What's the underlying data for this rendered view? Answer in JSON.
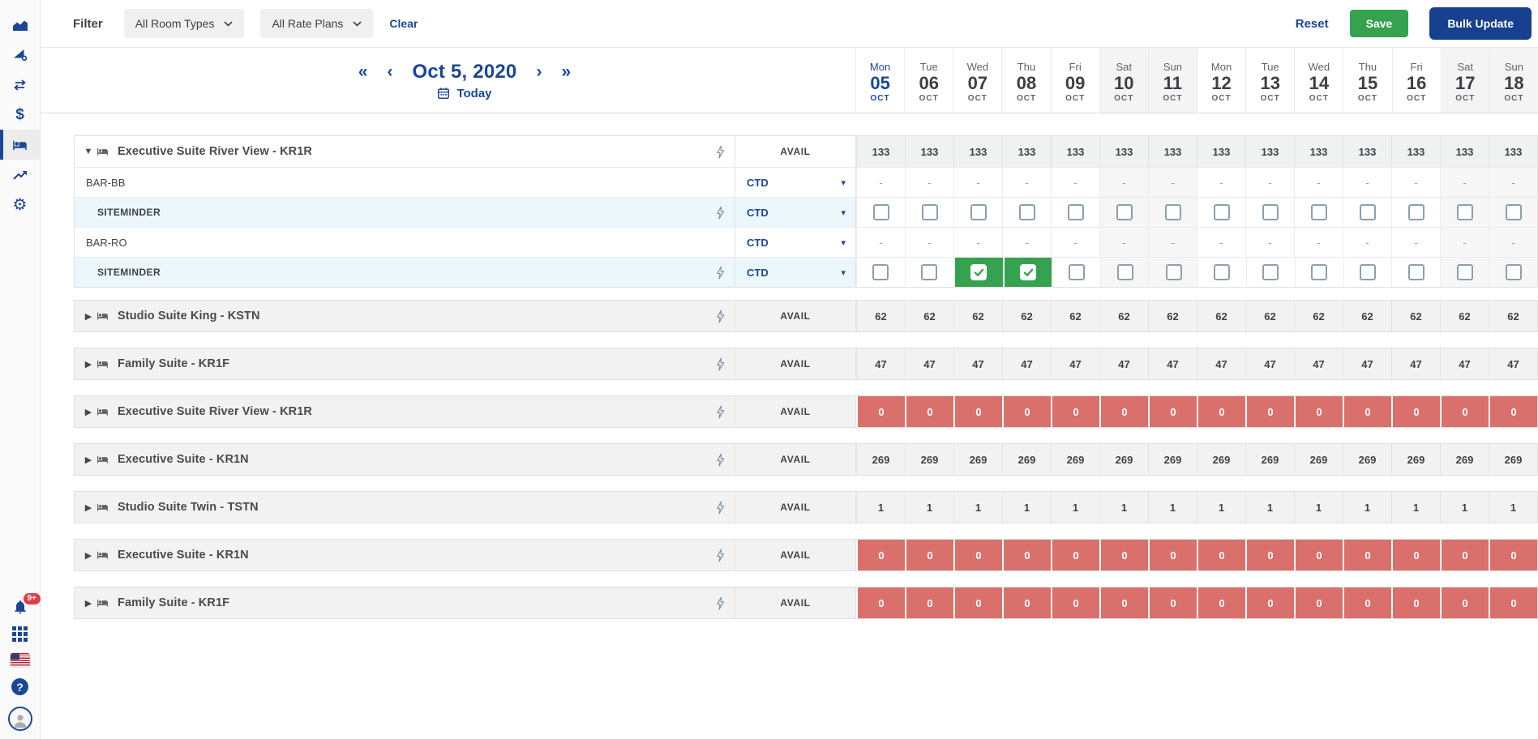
{
  "colors": {
    "navy": "#1b4796",
    "button_navy": "#17408e",
    "green": "#35a24f",
    "soldout_red": "#d9706b",
    "channel_row_bg": "#ecf7fb",
    "badge_red": "#e13b4e"
  },
  "sidebar": {
    "top_icons": [
      "area-chart",
      "ramp-gear",
      "swap-arrows",
      "dollar",
      "hotel-bed",
      "trend-up",
      "settings-gear"
    ],
    "active_icon": "hotel-bed",
    "notifications_badge": "9+",
    "bottom_icons": [
      "notifications-bell",
      "apps-grid",
      "us-flag",
      "help",
      "user-avatar"
    ]
  },
  "filter_bar": {
    "label": "Filter",
    "room_types_value": "All Room Types",
    "rate_plans_value": "All Rate Plans",
    "clear": "Clear",
    "reset": "Reset",
    "save": "Save",
    "bulk_update": "Bulk Update"
  },
  "calendar": {
    "title": "Oct 5, 2020",
    "today_label": "Today",
    "nav": {
      "prev_page": "«",
      "prev": "‹",
      "next": "›",
      "next_page": "»"
    },
    "days": [
      {
        "dow": "Mon",
        "date": "05",
        "month": "OCT",
        "today": true,
        "weekend": false
      },
      {
        "dow": "Tue",
        "date": "06",
        "month": "OCT",
        "today": false,
        "weekend": false
      },
      {
        "dow": "Wed",
        "date": "07",
        "month": "OCT",
        "today": false,
        "weekend": false
      },
      {
        "dow": "Thu",
        "date": "08",
        "month": "OCT",
        "today": false,
        "weekend": false
      },
      {
        "dow": "Fri",
        "date": "09",
        "month": "OCT",
        "today": false,
        "weekend": false
      },
      {
        "dow": "Sat",
        "date": "10",
        "month": "OCT",
        "today": false,
        "weekend": true
      },
      {
        "dow": "Sun",
        "date": "11",
        "month": "OCT",
        "today": false,
        "weekend": true
      },
      {
        "dow": "Mon",
        "date": "12",
        "month": "OCT",
        "today": false,
        "weekend": false
      },
      {
        "dow": "Tue",
        "date": "13",
        "month": "OCT",
        "today": false,
        "weekend": false
      },
      {
        "dow": "Wed",
        "date": "14",
        "month": "OCT",
        "today": false,
        "weekend": false
      },
      {
        "dow": "Thu",
        "date": "15",
        "month": "OCT",
        "today": false,
        "weekend": false
      },
      {
        "dow": "Fri",
        "date": "16",
        "month": "OCT",
        "today": false,
        "weekend": false
      },
      {
        "dow": "Sat",
        "date": "17",
        "month": "OCT",
        "today": false,
        "weekend": true
      },
      {
        "dow": "Sun",
        "date": "18",
        "month": "OCT",
        "today": false,
        "weekend": true
      }
    ]
  },
  "grid": {
    "avail_label": "AVAIL",
    "dash_placeholder": "-",
    "groups": [
      {
        "name": "Executive Suite River View - KR1R",
        "expanded": true,
        "avail": "133",
        "status": "normal",
        "children": [
          {
            "kind": "rate",
            "label": "BAR-BB",
            "restriction": "CTD",
            "cell_type": "dash"
          },
          {
            "kind": "channel",
            "label": "SITEMINDER",
            "restriction": "CTD",
            "cell_type": "checkbox",
            "checked_days": []
          },
          {
            "kind": "rate",
            "label": "BAR-RO",
            "restriction": "CTD",
            "cell_type": "dash"
          },
          {
            "kind": "channel",
            "label": "SITEMINDER",
            "restriction": "CTD",
            "cell_type": "checkbox",
            "checked_days": [
              2,
              3
            ]
          }
        ]
      },
      {
        "name": "Studio Suite King - KSTN",
        "expanded": false,
        "avail": "62",
        "status": "normal"
      },
      {
        "name": "Family Suite - KR1F",
        "expanded": false,
        "avail": "47",
        "status": "normal"
      },
      {
        "name": "Executive Suite River View - KR1R",
        "expanded": false,
        "avail": "0",
        "status": "soldout"
      },
      {
        "name": "Executive Suite - KR1N",
        "expanded": false,
        "avail": "269",
        "status": "normal"
      },
      {
        "name": "Studio Suite Twin - TSTN",
        "expanded": false,
        "avail": "1",
        "status": "normal"
      },
      {
        "name": "Executive Suite - KR1N",
        "expanded": false,
        "avail": "0",
        "status": "soldout"
      },
      {
        "name": "Family Suite - KR1F",
        "expanded": false,
        "avail": "0",
        "status": "soldout"
      }
    ]
  }
}
